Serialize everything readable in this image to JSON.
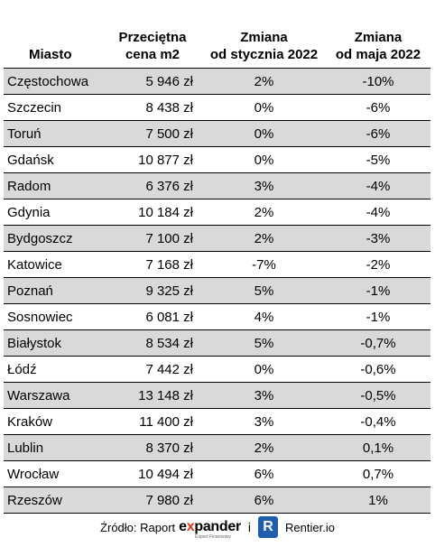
{
  "table": {
    "headers": {
      "city": "Miasto",
      "price": [
        "Przeciętna",
        "cena m2"
      ],
      "change_jan": [
        "Zmiana",
        "od stycznia 2022"
      ],
      "change_may": [
        "Zmiana",
        "od maja 2022"
      ]
    },
    "rows": [
      {
        "city": "Częstochowa",
        "price": "5 946 zł",
        "change_jan": "2%",
        "change_may": "-10%"
      },
      {
        "city": "Szczecin",
        "price": "8 438 zł",
        "change_jan": "0%",
        "change_may": "-6%"
      },
      {
        "city": "Toruń",
        "price": "7 500 zł",
        "change_jan": "0%",
        "change_may": "-6%"
      },
      {
        "city": "Gdańsk",
        "price": "10 877 zł",
        "change_jan": "0%",
        "change_may": "-5%"
      },
      {
        "city": "Radom",
        "price": "6 376 zł",
        "change_jan": "3%",
        "change_may": "-4%"
      },
      {
        "city": "Gdynia",
        "price": "10 184 zł",
        "change_jan": "2%",
        "change_may": "-4%"
      },
      {
        "city": "Bydgoszcz",
        "price": "7 100 zł",
        "change_jan": "2%",
        "change_may": "-3%"
      },
      {
        "city": "Katowice",
        "price": "7 168 zł",
        "change_jan": "-7%",
        "change_may": "-2%"
      },
      {
        "city": "Poznań",
        "price": "9 325 zł",
        "change_jan": "5%",
        "change_may": "-1%"
      },
      {
        "city": "Sosnowiec",
        "price": "6 081 zł",
        "change_jan": "4%",
        "change_may": "-1%"
      },
      {
        "city": "Białystok",
        "price": "8 534 zł",
        "change_jan": "5%",
        "change_may": "-0,7%"
      },
      {
        "city": "Łódź",
        "price": "7 442 zł",
        "change_jan": "0%",
        "change_may": "-0,6%"
      },
      {
        "city": "Warszawa",
        "price": "13 148 zł",
        "change_jan": "3%",
        "change_may": "-0,5%"
      },
      {
        "city": "Kraków",
        "price": "11 400 zł",
        "change_jan": "3%",
        "change_may": "-0,4%"
      },
      {
        "city": "Lublin",
        "price": "8 370 zł",
        "change_jan": "2%",
        "change_may": "0,1%"
      },
      {
        "city": "Wrocław",
        "price": "10 494 zł",
        "change_jan": "6%",
        "change_may": "0,7%"
      },
      {
        "city": "Rzeszów",
        "price": "7 980 zł",
        "change_jan": "6%",
        "change_may": "1%"
      }
    ]
  },
  "source": {
    "prefix": "Źródło: Raport",
    "brand1_pre": "e",
    "brand1_x": "x",
    "brand1_post": "pander",
    "brand1_tagline": "Expert Finansowy",
    "separator": "i",
    "brand2_logo": "R",
    "brand2": "Rentier.io"
  },
  "colors": {
    "stripe": "#d9d9d9",
    "expander_accent": "#e2361b",
    "rentier_logo": "#1e5eab"
  }
}
